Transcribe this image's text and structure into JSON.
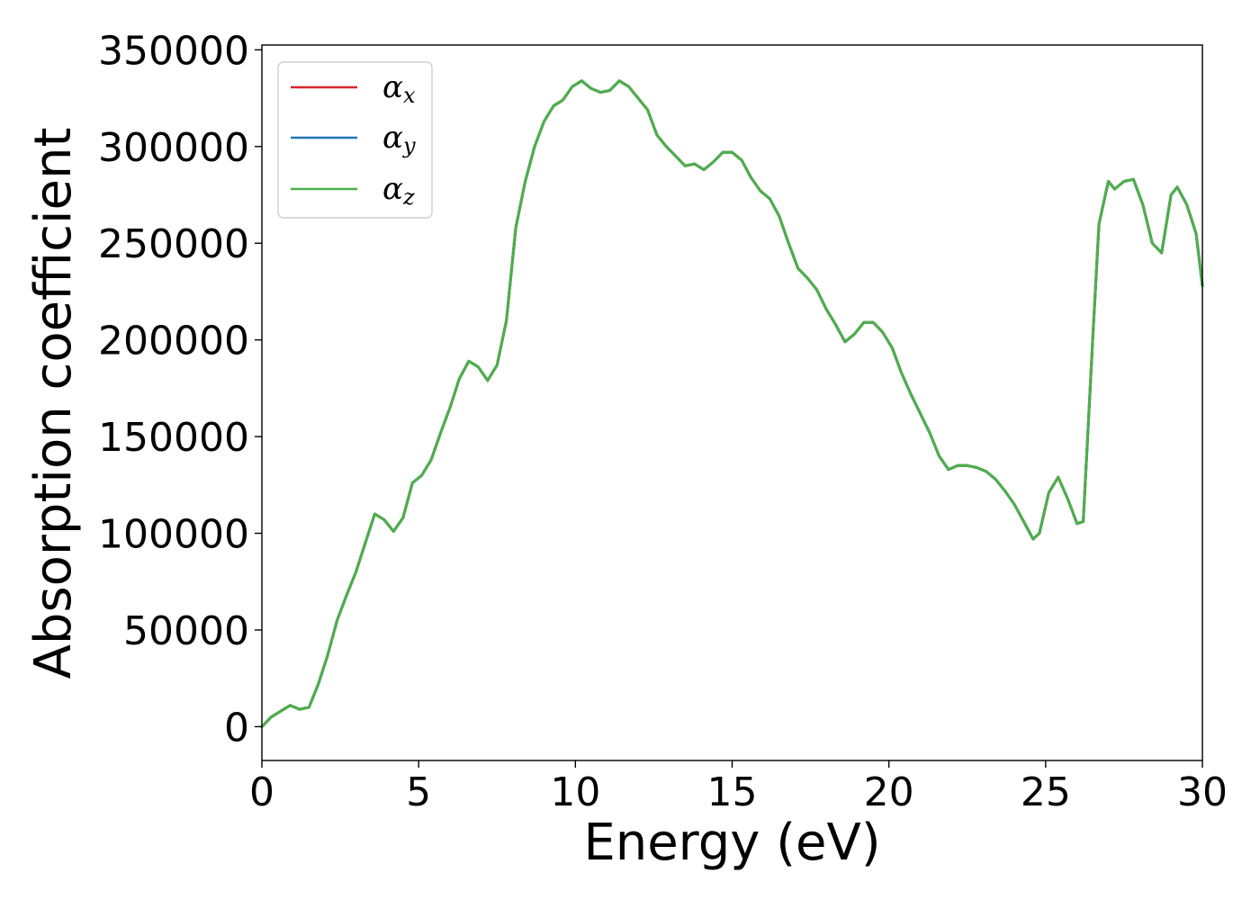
{
  "chart_data": {
    "type": "line",
    "title": "",
    "xlabel": "Energy (eV)",
    "ylabel": "Absorption coefficient",
    "xlim": [
      0,
      30
    ],
    "ylim": [
      -17500,
      352500
    ],
    "xticks": [
      0,
      5,
      10,
      15,
      20,
      25,
      30
    ],
    "yticks": [
      0,
      50000,
      100000,
      150000,
      200000,
      250000,
      300000,
      350000
    ],
    "grid": false,
    "legend_position": "top-left",
    "x": [
      0,
      0.3,
      0.6,
      0.9,
      1.2,
      1.5,
      1.8,
      2.1,
      2.4,
      2.7,
      3.0,
      3.3,
      3.6,
      3.9,
      4.2,
      4.5,
      4.8,
      5.1,
      5.4,
      5.7,
      6.0,
      6.3,
      6.6,
      6.9,
      7.2,
      7.5,
      7.8,
      8.1,
      8.4,
      8.7,
      9.0,
      9.3,
      9.6,
      9.9,
      10.2,
      10.5,
      10.8,
      11.1,
      11.4,
      11.7,
      12.0,
      12.3,
      12.6,
      12.9,
      13.2,
      13.5,
      13.8,
      14.1,
      14.4,
      14.7,
      15.0,
      15.3,
      15.6,
      15.9,
      16.2,
      16.5,
      16.8,
      17.1,
      17.4,
      17.7,
      18.0,
      18.3,
      18.6,
      18.9,
      19.2,
      19.5,
      19.8,
      20.1,
      20.4,
      20.7,
      21.0,
      21.3,
      21.6,
      21.9,
      22.2,
      22.5,
      22.8,
      23.1,
      23.4,
      23.7,
      24.0,
      24.3,
      24.6,
      24.8,
      25.1,
      25.4,
      25.7,
      26.0,
      26.2,
      26.5,
      26.7,
      27.0,
      27.2,
      27.5,
      27.8,
      28.1,
      28.4,
      28.7,
      29.0,
      29.2,
      29.5,
      29.8,
      30.0
    ],
    "series": [
      {
        "name": "α_x",
        "legend_main": "α",
        "legend_sub": "x",
        "color": "#d62728",
        "y": [
          0,
          5000,
          8000,
          11000,
          9000,
          10000,
          22000,
          37000,
          55000,
          68000,
          80000,
          95000,
          110000,
          107000,
          101000,
          108000,
          126000,
          130000,
          138000,
          152000,
          165000,
          180000,
          189000,
          186000,
          179000,
          187000,
          210000,
          258000,
          282000,
          300000,
          313000,
          321000,
          324000,
          331000,
          334000,
          330000,
          328000,
          329000,
          334000,
          331000,
          325000,
          319000,
          306000,
          300000,
          295000,
          290000,
          291000,
          288000,
          292000,
          297000,
          297000,
          293000,
          284000,
          277000,
          273000,
          264000,
          250000,
          237000,
          232000,
          226000,
          216000,
          208000,
          199000,
          203000,
          209000,
          209000,
          204000,
          196000,
          183000,
          172000,
          162000,
          152000,
          140000,
          133000,
          135000,
          135000,
          134000,
          132000,
          128000,
          122000,
          115000,
          106000,
          97000,
          100000,
          121000,
          129000,
          118000,
          105000,
          106000,
          200000,
          260000,
          282000,
          278000,
          282000,
          283000,
          270000,
          250000,
          245000,
          275000,
          279000,
          270000,
          255000,
          228000
        ]
      },
      {
        "name": "α_y",
        "legend_main": "α",
        "legend_sub": "y",
        "color": "#1f77b4",
        "y": [
          0,
          5000,
          8000,
          11000,
          9000,
          10000,
          22000,
          37000,
          55000,
          68000,
          80000,
          95000,
          110000,
          107000,
          101000,
          108000,
          126000,
          130000,
          138000,
          152000,
          165000,
          180000,
          189000,
          186000,
          179000,
          187000,
          210000,
          258000,
          282000,
          300000,
          313000,
          321000,
          324000,
          331000,
          334000,
          330000,
          328000,
          329000,
          334000,
          331000,
          325000,
          319000,
          306000,
          300000,
          295000,
          290000,
          291000,
          288000,
          292000,
          297000,
          297000,
          293000,
          284000,
          277000,
          273000,
          264000,
          250000,
          237000,
          232000,
          226000,
          216000,
          208000,
          199000,
          203000,
          209000,
          209000,
          204000,
          196000,
          183000,
          172000,
          162000,
          152000,
          140000,
          133000,
          135000,
          135000,
          134000,
          132000,
          128000,
          122000,
          115000,
          106000,
          97000,
          100000,
          121000,
          129000,
          118000,
          105000,
          106000,
          200000,
          260000,
          282000,
          278000,
          282000,
          283000,
          270000,
          250000,
          245000,
          275000,
          279000,
          270000,
          255000,
          228000
        ]
      },
      {
        "name": "α_z",
        "legend_main": "α",
        "legend_sub": "z",
        "color": "#4daf4a",
        "y": [
          0,
          5000,
          8000,
          11000,
          9000,
          10000,
          22000,
          37000,
          55000,
          68000,
          80000,
          95000,
          110000,
          107000,
          101000,
          108000,
          126000,
          130000,
          138000,
          152000,
          165000,
          180000,
          189000,
          186000,
          179000,
          187000,
          210000,
          258000,
          282000,
          300000,
          313000,
          321000,
          324000,
          331000,
          334000,
          330000,
          328000,
          329000,
          334000,
          331000,
          325000,
          319000,
          306000,
          300000,
          295000,
          290000,
          291000,
          288000,
          292000,
          297000,
          297000,
          293000,
          284000,
          277000,
          273000,
          264000,
          250000,
          237000,
          232000,
          226000,
          216000,
          208000,
          199000,
          203000,
          209000,
          209000,
          204000,
          196000,
          183000,
          172000,
          162000,
          152000,
          140000,
          133000,
          135000,
          135000,
          134000,
          132000,
          128000,
          122000,
          115000,
          106000,
          97000,
          100000,
          121000,
          129000,
          118000,
          105000,
          106000,
          200000,
          260000,
          282000,
          278000,
          282000,
          283000,
          270000,
          250000,
          245000,
          275000,
          279000,
          270000,
          255000,
          228000
        ]
      }
    ]
  }
}
